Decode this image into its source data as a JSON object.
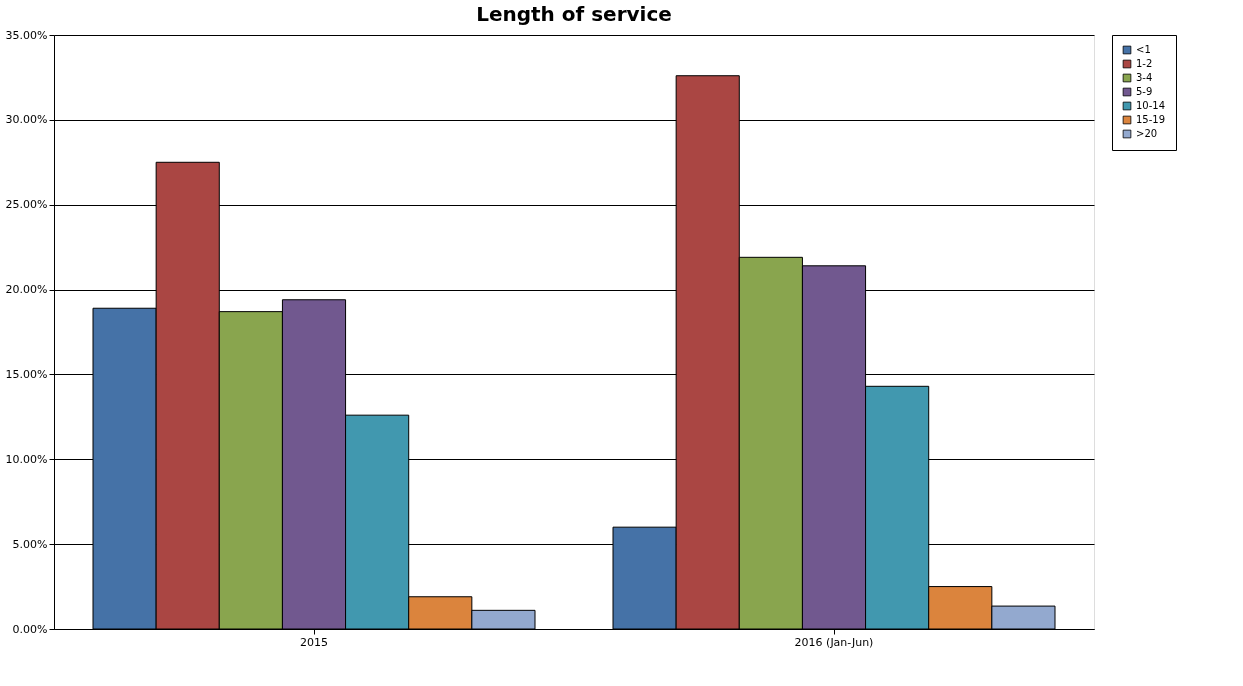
{
  "chart_data": {
    "type": "bar",
    "title": "Length of service",
    "categories": [
      "2015",
      "2016 (Jan-Jun)"
    ],
    "series": [
      {
        "name": "<1",
        "color": "#4572a7",
        "values": [
          18.9,
          6.0
        ]
      },
      {
        "name": "1-2",
        "color": "#aa4643",
        "values": [
          27.5,
          32.6
        ]
      },
      {
        "name": "3-4",
        "color": "#89a54e",
        "values": [
          18.7,
          21.9
        ]
      },
      {
        "name": "5-9",
        "color": "#71588f",
        "values": [
          19.4,
          21.4
        ]
      },
      {
        "name": "10-14",
        "color": "#4198af",
        "values": [
          12.6,
          14.3
        ]
      },
      {
        "name": "15-19",
        "color": "#db843d",
        "values": [
          1.9,
          2.5
        ]
      },
      {
        "name": ">20",
        "color": "#93a9cf",
        "values": [
          1.1,
          1.35
        ]
      }
    ],
    "ylim": [
      0,
      35
    ],
    "yticks": [
      {
        "value": 0,
        "label": "0.00%"
      },
      {
        "value": 5,
        "label": "5.00%"
      },
      {
        "value": 10,
        "label": "10.00%"
      },
      {
        "value": 15,
        "label": "15.00%"
      },
      {
        "value": 20,
        "label": "20.00%"
      },
      {
        "value": 25,
        "label": "25.00%"
      },
      {
        "value": 30,
        "label": "30.00%"
      },
      {
        "value": 35,
        "label": "35.00%"
      }
    ],
    "grid": "y",
    "legend": "right"
  }
}
